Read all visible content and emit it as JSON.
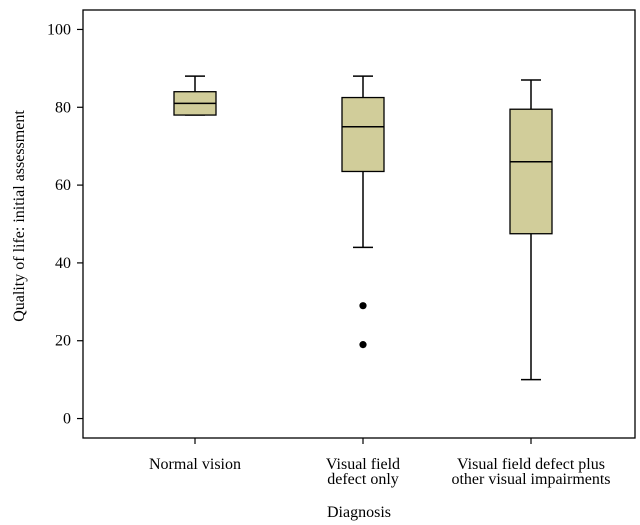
{
  "chart_data": {
    "type": "box",
    "xlabel": "Diagnosis",
    "ylabel": "Quality of life: initial assessment",
    "ylim": [
      -5,
      105
    ],
    "yticks": [
      0,
      20,
      40,
      60,
      80,
      100
    ],
    "grid": false,
    "box_color": "#d1cd9a",
    "categories": [
      [
        "Normal vision"
      ],
      [
        "Visual field",
        "defect only"
      ],
      [
        "Visual field defect plus",
        "other visual impairments"
      ]
    ],
    "boxes": [
      {
        "whisker_low": 78,
        "q1": 78,
        "median": 81,
        "q3": 84,
        "whisker_high": 88,
        "outliers": []
      },
      {
        "whisker_low": 44,
        "q1": 63.5,
        "median": 75,
        "q3": 82.5,
        "whisker_high": 88,
        "outliers": [
          29,
          19
        ]
      },
      {
        "whisker_low": 10,
        "q1": 47.5,
        "median": 66,
        "q3": 79.5,
        "whisker_high": 87,
        "outliers": []
      }
    ]
  }
}
